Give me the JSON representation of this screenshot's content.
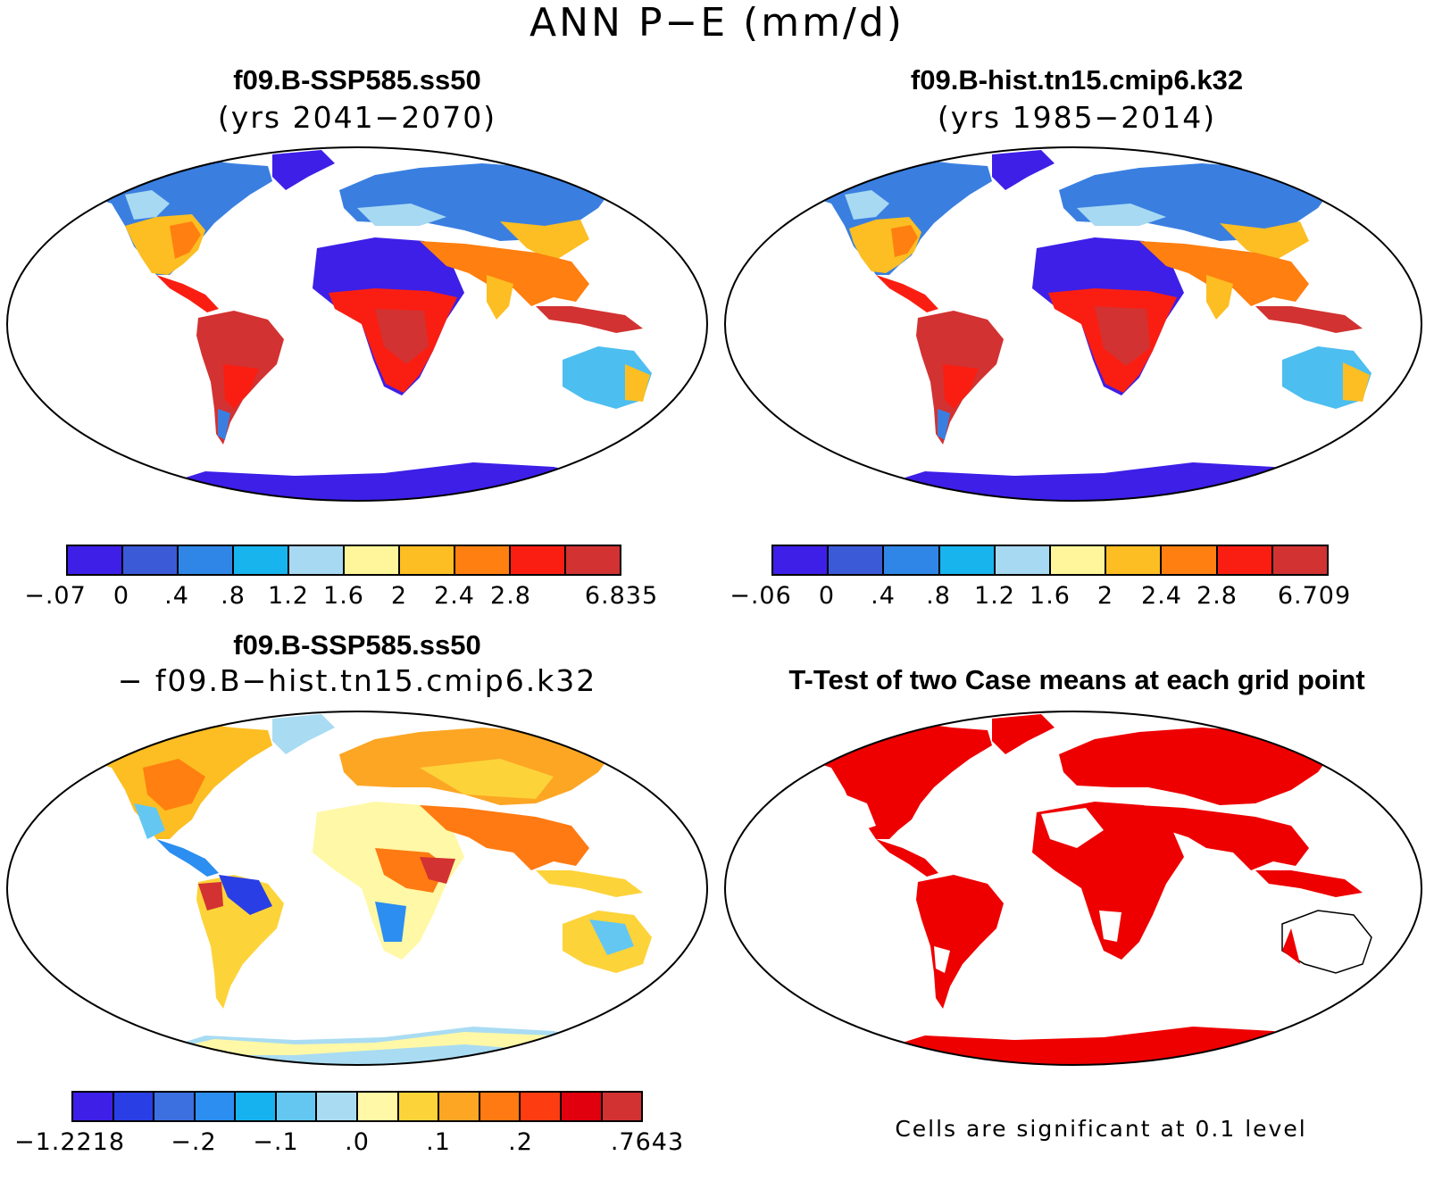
{
  "figure_title": "ANN P−E (mm/d)",
  "panels": {
    "top_left": {
      "title": "f09.B-SSP585.ss50",
      "subtitle": "(yrs 2041−2070)",
      "colorbar": {
        "colors": [
          "#3d1fe8",
          "#3a5ad8",
          "#2f86e6",
          "#18b4ee",
          "#a7d9f2",
          "#fff59a",
          "#fcbe22",
          "#ff7f10",
          "#fa1e12",
          "#d23232"
        ],
        "labels": [
          "−.07",
          "0",
          ".4",
          ".8",
          "1.2",
          "1.6",
          "2",
          "2.4",
          "2.8",
          "",
          "6.835"
        ]
      }
    },
    "top_right": {
      "title": "f09.B-hist.tn15.cmip6.k32",
      "subtitle": "(yrs 1985−2014)",
      "colorbar": {
        "colors": [
          "#3d1fe8",
          "#3a5ad8",
          "#2f86e6",
          "#18b4ee",
          "#a7d9f2",
          "#fff59a",
          "#fcbe22",
          "#ff7f10",
          "#fa1e12",
          "#d23232"
        ],
        "labels": [
          "−.06",
          "0",
          ".4",
          ".8",
          "1.2",
          "1.6",
          "2",
          "2.4",
          "2.8",
          "",
          "6.709"
        ]
      }
    },
    "bottom_left": {
      "title": "f09.B-SSP585.ss50",
      "subtitle": "− f09.B−hist.tn15.cmip6.k32",
      "colorbar": {
        "colors": [
          "#3d1fe8",
          "#2a3ee6",
          "#3c6fe0",
          "#2b8ef0",
          "#16b2ef",
          "#63c7f2",
          "#a9dcf3",
          "#fff8a6",
          "#fdd33a",
          "#fca624",
          "#ff7a12",
          "#fe3c12",
          "#e1000e",
          "#d23232"
        ],
        "labels": [
          "−1.2218",
          "",
          "−.2",
          "",
          "−.1",
          "",
          ".0",
          "",
          ".1",
          "",
          ".2",
          "",
          "",
          "",
          ".7643"
        ]
      }
    },
    "bottom_right": {
      "title": "T-Test of two Case means at each grid point",
      "note": "Cells are significant at 0.1 level",
      "colors": {
        "significant": "#ee0000"
      }
    }
  },
  "map_projection": "Robinson"
}
